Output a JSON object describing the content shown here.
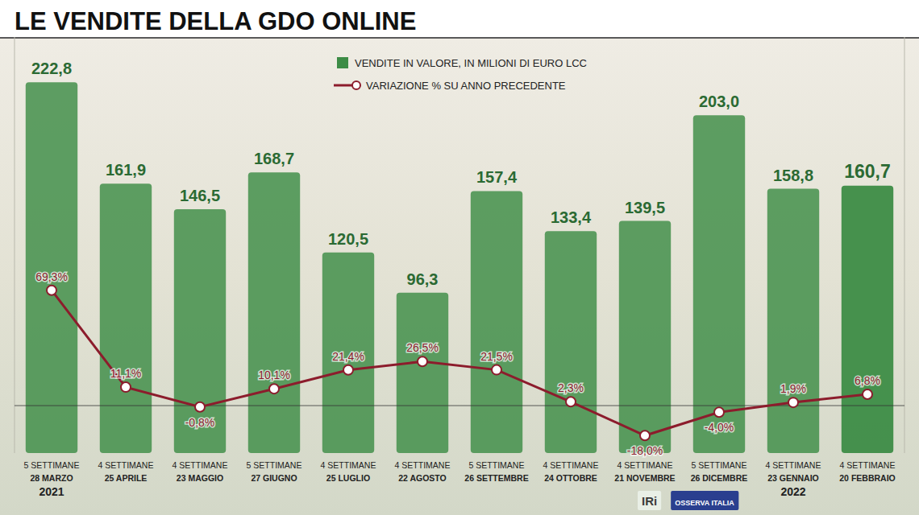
{
  "chart_data": {
    "type": "bar",
    "title": "LE VENDITE DELLA GDO ONLINE",
    "categories": [
      "28 MARZO",
      "25 APRILE",
      "23 MAGGIO",
      "27 GIUGNO",
      "25 LUGLIO",
      "22 AGOSTO",
      "26 SETTEMBRE",
      "24 OTTOBRE",
      "21 NOVEMBRE",
      "26 DICEMBRE",
      "23 GENNAIO",
      "20 FEBBRAIO"
    ],
    "periods": [
      "5 SETTIMANE",
      "4 SETTIMANE",
      "4 SETTIMANE",
      "5 SETTIMANE",
      "4 SETTIMANE",
      "4 SETTIMANE",
      "5 SETTIMANE",
      "4 SETTIMANE",
      "4 SETTIMANE",
      "5 SETTIMANE",
      "4 SETTIMANE",
      "4 SETTIMANE"
    ],
    "year_labels": [
      "2021",
      null,
      null,
      null,
      null,
      null,
      null,
      null,
      null,
      null,
      "2022",
      null
    ],
    "series": [
      {
        "name": "VENDITE IN VALORE, IN MILIONI DI EURO LCC",
        "type": "bar",
        "color": "#3d8c46",
        "values": [
          222.8,
          161.9,
          146.5,
          168.7,
          120.5,
          96.3,
          157.4,
          133.4,
          139.5,
          203.0,
          158.8,
          160.7
        ],
        "value_labels": [
          "222,8",
          "161,9",
          "146,5",
          "168,7",
          "120,5",
          "96,3",
          "157,4",
          "133,4",
          "139,5",
          "203,0",
          "158,8",
          "160,7"
        ]
      },
      {
        "name": "VARIAZIONE % SU ANNO PRECEDENTE",
        "type": "line",
        "axis": "y2",
        "color": "#8c1c2c",
        "marker": "circle",
        "values": [
          69.3,
          11.1,
          -0.8,
          10.1,
          21.4,
          26.5,
          21.5,
          2.3,
          -18.0,
          -4.0,
          1.9,
          6.8
        ],
        "value_labels": [
          "69,3%",
          "11,1%",
          "-0,8%",
          "10,1%",
          "21,4%",
          "26,5%",
          "21,5%",
          "2,3%",
          "-18,0%",
          "-4,0%",
          "1,9%",
          "6,8%"
        ]
      }
    ],
    "ylim": [
      0,
      250
    ],
    "y2lim": [
      -28.5,
      221.5
    ],
    "y2ticks": [
      0
    ],
    "data_labels": true,
    "tick_labels": false,
    "legend": "top",
    "sources": [
      "IRi",
      "OSSERVA ITALIA"
    ]
  }
}
